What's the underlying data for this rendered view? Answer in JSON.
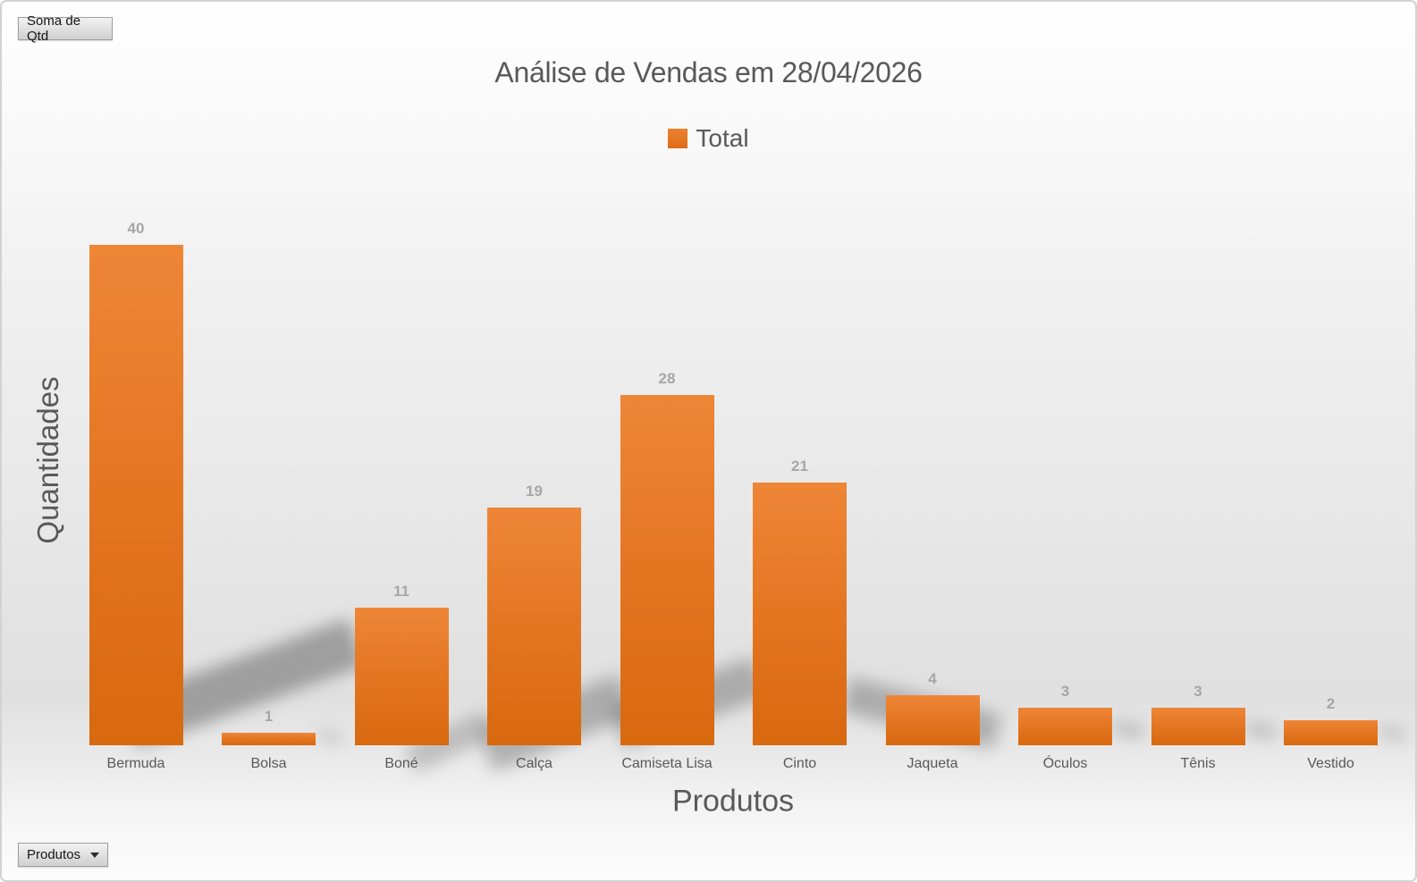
{
  "field_buttons": {
    "value_button": "Soma de Qtd",
    "axis_button": "Produtos"
  },
  "chart_data": {
    "type": "bar",
    "title": "Análise de Vendas em 28/04/2026",
    "legend": {
      "position": "top-center",
      "entries": [
        "Total"
      ]
    },
    "categories": [
      "Bermuda",
      "Bolsa",
      "Boné",
      "Calça",
      "Camiseta Lisa",
      "Cinto",
      "Jaqueta",
      "Óculos",
      "Tênis",
      "Vestido"
    ],
    "series": [
      {
        "name": "Total",
        "values": [
          40,
          1,
          11,
          19,
          28,
          21,
          4,
          3,
          3,
          2
        ]
      }
    ],
    "data_labels": [
      40,
      1,
      11,
      19,
      28,
      21,
      4,
      3,
      3,
      2
    ],
    "xlabel": "Produtos",
    "ylabel": "Quantidades",
    "ylim": [
      0,
      40
    ],
    "grid": false,
    "y_tick_labels": "none",
    "style": "orange gradient bars with perspective shadows on gray gradient background"
  },
  "colors": {
    "bar_gradient_top": "#ee8637",
    "bar_gradient_bottom": "#d8690f",
    "legend_marker": "#e87a28",
    "title_text": "#595959",
    "axis_text": "#595959",
    "data_label_text": "#a6a6a6",
    "background_mid": "#e3e3e3",
    "border": "#d2d2d2"
  }
}
